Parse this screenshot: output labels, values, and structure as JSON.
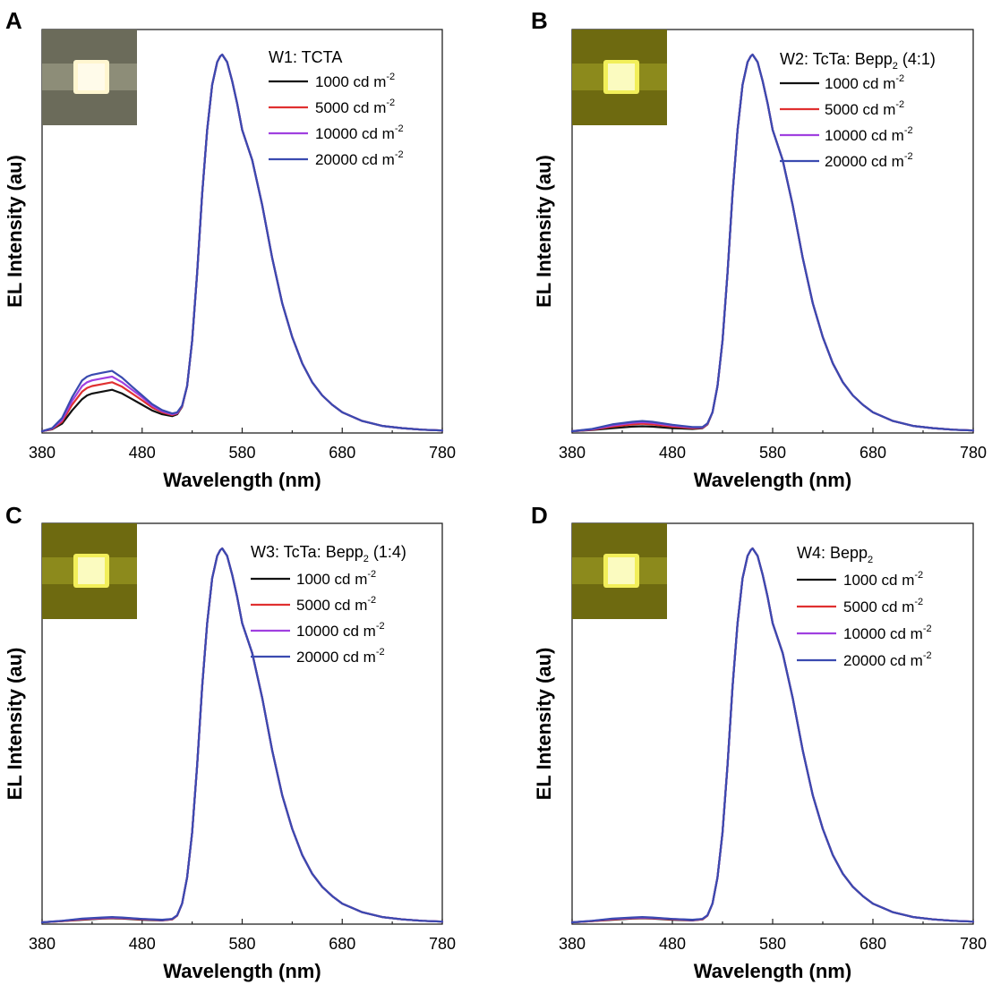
{
  "x_axis_label": "Wavelength (nm)",
  "y_axis_label": "EL Intensity (au)",
  "x_ticks": [
    "380",
    "480",
    "580",
    "680",
    "780"
  ],
  "unit_label": "cd m",
  "unit_exponent": "-2",
  "colors": {
    "1000": "#111111",
    "5000": "#e03030",
    "10000": "#a040e0",
    "20000": "#3a4ab0",
    "photo_dark": "#6f6f58",
    "photo_yellow": "#7a7a18"
  },
  "chart_data": [
    {
      "type": "line",
      "panel": "A",
      "legend_title": "W1: TCTA",
      "legend_title_parts": [
        "W1: TCTA",
        "",
        ""
      ],
      "xlim": [
        380,
        780
      ],
      "ylim": [
        0,
        1.0
      ],
      "x": [
        380,
        390,
        400,
        410,
        420,
        425,
        430,
        440,
        450,
        460,
        470,
        480,
        490,
        500,
        510,
        515,
        520,
        525,
        530,
        535,
        540,
        545,
        550,
        555,
        558,
        560,
        565,
        570,
        575,
        580,
        590,
        600,
        610,
        620,
        630,
        640,
        650,
        660,
        670,
        680,
        700,
        720,
        740,
        760,
        780
      ],
      "series": [
        {
          "name": "1000 cd m-2",
          "color": "#111111",
          "values": [
            0.0,
            0.005,
            0.02,
            0.055,
            0.085,
            0.095,
            0.1,
            0.105,
            0.11,
            0.1,
            0.085,
            0.07,
            0.055,
            0.045,
            0.04,
            0.045,
            0.065,
            0.12,
            0.24,
            0.42,
            0.63,
            0.8,
            0.92,
            0.98,
            0.995,
            1.0,
            0.98,
            0.93,
            0.87,
            0.8,
            0.72,
            0.6,
            0.46,
            0.34,
            0.25,
            0.18,
            0.13,
            0.095,
            0.07,
            0.05,
            0.027,
            0.014,
            0.008,
            0.004,
            0.002
          ]
        },
        {
          "name": "5000 cd m-2",
          "color": "#e03030",
          "values": [
            0.0,
            0.006,
            0.025,
            0.07,
            0.105,
            0.115,
            0.12,
            0.125,
            0.13,
            0.118,
            0.1,
            0.082,
            0.063,
            0.05,
            0.043,
            0.047,
            0.066,
            0.12,
            0.24,
            0.42,
            0.63,
            0.8,
            0.92,
            0.98,
            0.995,
            1.0,
            0.98,
            0.93,
            0.87,
            0.8,
            0.72,
            0.6,
            0.46,
            0.34,
            0.25,
            0.18,
            0.13,
            0.095,
            0.07,
            0.05,
            0.027,
            0.014,
            0.008,
            0.004,
            0.002
          ]
        },
        {
          "name": "10000 cd m-2",
          "color": "#a040e0",
          "values": [
            0.0,
            0.007,
            0.03,
            0.08,
            0.12,
            0.13,
            0.135,
            0.14,
            0.145,
            0.13,
            0.11,
            0.09,
            0.068,
            0.053,
            0.045,
            0.048,
            0.067,
            0.12,
            0.24,
            0.42,
            0.63,
            0.8,
            0.92,
            0.98,
            0.995,
            1.0,
            0.98,
            0.93,
            0.87,
            0.8,
            0.72,
            0.6,
            0.46,
            0.34,
            0.25,
            0.18,
            0.13,
            0.095,
            0.07,
            0.05,
            0.027,
            0.014,
            0.008,
            0.004,
            0.002
          ]
        },
        {
          "name": "20000 cd m-2",
          "color": "#3a4ab0",
          "values": [
            0.0,
            0.008,
            0.035,
            0.09,
            0.135,
            0.145,
            0.15,
            0.155,
            0.16,
            0.142,
            0.118,
            0.095,
            0.072,
            0.056,
            0.047,
            0.05,
            0.068,
            0.12,
            0.24,
            0.42,
            0.63,
            0.8,
            0.92,
            0.98,
            0.995,
            1.0,
            0.98,
            0.93,
            0.87,
            0.8,
            0.72,
            0.6,
            0.46,
            0.34,
            0.25,
            0.18,
            0.13,
            0.095,
            0.07,
            0.05,
            0.027,
            0.014,
            0.008,
            0.004,
            0.002
          ]
        }
      ],
      "xlabel": "Wavelength (nm)",
      "ylabel": "EL Intensity (au)",
      "photo": "white-emission",
      "legend_position": "top-right"
    },
    {
      "type": "line",
      "panel": "B",
      "legend_title": "W2: TcTa: Bepp2 (4:1)",
      "legend_title_parts": [
        "W2: TcTa: Bepp",
        "2",
        " (4:1)"
      ],
      "xlim": [
        380,
        780
      ],
      "ylim": [
        0,
        1.0
      ],
      "x": [
        380,
        400,
        420,
        440,
        450,
        460,
        480,
        500,
        510,
        515,
        520,
        525,
        530,
        535,
        540,
        545,
        550,
        555,
        558,
        560,
        565,
        570,
        575,
        580,
        590,
        600,
        610,
        620,
        630,
        640,
        650,
        660,
        670,
        680,
        700,
        720,
        740,
        760,
        780
      ],
      "series": [
        {
          "name": "1000 cd m-2",
          "color": "#111111",
          "values": [
            0.0,
            0.003,
            0.008,
            0.012,
            0.013,
            0.012,
            0.008,
            0.006,
            0.008,
            0.018,
            0.05,
            0.12,
            0.24,
            0.42,
            0.63,
            0.8,
            0.92,
            0.98,
            0.995,
            1.0,
            0.98,
            0.93,
            0.87,
            0.8,
            0.72,
            0.6,
            0.46,
            0.34,
            0.25,
            0.18,
            0.13,
            0.095,
            0.07,
            0.05,
            0.027,
            0.014,
            0.008,
            0.004,
            0.002
          ]
        },
        {
          "name": "5000 cd m-2",
          "color": "#e03030",
          "values": [
            0.0,
            0.004,
            0.012,
            0.018,
            0.02,
            0.018,
            0.012,
            0.008,
            0.009,
            0.019,
            0.05,
            0.12,
            0.24,
            0.42,
            0.63,
            0.8,
            0.92,
            0.98,
            0.995,
            1.0,
            0.98,
            0.93,
            0.87,
            0.8,
            0.72,
            0.6,
            0.46,
            0.34,
            0.25,
            0.18,
            0.13,
            0.095,
            0.07,
            0.05,
            0.027,
            0.014,
            0.008,
            0.004,
            0.002
          ]
        },
        {
          "name": "10000 cd m-2",
          "color": "#a040e0",
          "values": [
            0.0,
            0.005,
            0.015,
            0.022,
            0.024,
            0.022,
            0.015,
            0.01,
            0.01,
            0.02,
            0.05,
            0.12,
            0.24,
            0.42,
            0.63,
            0.8,
            0.92,
            0.98,
            0.995,
            1.0,
            0.98,
            0.93,
            0.87,
            0.8,
            0.72,
            0.6,
            0.46,
            0.34,
            0.25,
            0.18,
            0.13,
            0.095,
            0.07,
            0.05,
            0.027,
            0.014,
            0.008,
            0.004,
            0.002
          ]
        },
        {
          "name": "20000 cd m-2",
          "color": "#3a4ab0",
          "values": [
            0.0,
            0.006,
            0.018,
            0.025,
            0.027,
            0.025,
            0.017,
            0.011,
            0.011,
            0.021,
            0.05,
            0.12,
            0.24,
            0.42,
            0.63,
            0.8,
            0.92,
            0.98,
            0.995,
            1.0,
            0.98,
            0.93,
            0.87,
            0.8,
            0.72,
            0.6,
            0.46,
            0.34,
            0.25,
            0.18,
            0.13,
            0.095,
            0.07,
            0.05,
            0.027,
            0.014,
            0.008,
            0.004,
            0.002
          ]
        }
      ],
      "xlabel": "Wavelength (nm)",
      "ylabel": "EL Intensity (au)",
      "photo": "yellow-emission",
      "legend_position": "top-right"
    },
    {
      "type": "line",
      "panel": "C",
      "legend_title": "W3: TcTa: Bepp2 (1:4)",
      "legend_title_parts": [
        "W3: TcTa: Bepp",
        "2",
        " (1:4)"
      ],
      "xlim": [
        380,
        780
      ],
      "ylim": [
        0,
        1.0
      ],
      "x": [
        380,
        400,
        420,
        440,
        450,
        460,
        480,
        500,
        510,
        515,
        520,
        525,
        530,
        535,
        540,
        545,
        550,
        555,
        558,
        560,
        565,
        570,
        575,
        580,
        590,
        600,
        610,
        620,
        630,
        640,
        650,
        660,
        670,
        680,
        700,
        720,
        740,
        760,
        780
      ],
      "series": [
        {
          "name": "1000 cd m-2",
          "color": "#111111",
          "values": [
            0.0,
            0.003,
            0.007,
            0.01,
            0.011,
            0.01,
            0.007,
            0.005,
            0.008,
            0.018,
            0.05,
            0.12,
            0.24,
            0.42,
            0.63,
            0.8,
            0.92,
            0.98,
            0.995,
            1.0,
            0.98,
            0.93,
            0.87,
            0.8,
            0.72,
            0.6,
            0.46,
            0.34,
            0.25,
            0.18,
            0.13,
            0.095,
            0.07,
            0.05,
            0.027,
            0.014,
            0.008,
            0.004,
            0.002
          ]
        },
        {
          "name": "5000 cd m-2",
          "color": "#e03030",
          "values": [
            0.0,
            0.003,
            0.008,
            0.011,
            0.012,
            0.011,
            0.008,
            0.006,
            0.008,
            0.018,
            0.05,
            0.12,
            0.24,
            0.42,
            0.63,
            0.8,
            0.92,
            0.98,
            0.995,
            1.0,
            0.98,
            0.93,
            0.87,
            0.8,
            0.72,
            0.6,
            0.46,
            0.34,
            0.25,
            0.18,
            0.13,
            0.095,
            0.07,
            0.05,
            0.027,
            0.014,
            0.008,
            0.004,
            0.002
          ]
        },
        {
          "name": "10000 cd m-2",
          "color": "#a040e0",
          "values": [
            0.0,
            0.004,
            0.009,
            0.012,
            0.013,
            0.012,
            0.009,
            0.006,
            0.009,
            0.019,
            0.05,
            0.12,
            0.24,
            0.42,
            0.63,
            0.8,
            0.92,
            0.98,
            0.995,
            1.0,
            0.98,
            0.93,
            0.87,
            0.8,
            0.72,
            0.6,
            0.46,
            0.34,
            0.25,
            0.18,
            0.13,
            0.095,
            0.07,
            0.05,
            0.027,
            0.014,
            0.008,
            0.004,
            0.002
          ]
        },
        {
          "name": "20000 cd m-2",
          "color": "#3a4ab0",
          "values": [
            0.0,
            0.004,
            0.01,
            0.013,
            0.014,
            0.013,
            0.009,
            0.007,
            0.009,
            0.019,
            0.05,
            0.12,
            0.24,
            0.42,
            0.63,
            0.8,
            0.92,
            0.98,
            0.995,
            1.0,
            0.98,
            0.93,
            0.87,
            0.8,
            0.72,
            0.6,
            0.46,
            0.34,
            0.25,
            0.18,
            0.13,
            0.095,
            0.07,
            0.05,
            0.027,
            0.014,
            0.008,
            0.004,
            0.002
          ]
        }
      ],
      "xlabel": "Wavelength (nm)",
      "ylabel": "EL Intensity (au)",
      "photo": "yellow-emission",
      "legend_position": "top-right"
    },
    {
      "type": "line",
      "panel": "D",
      "legend_title": "W4: Bepp2",
      "legend_title_parts": [
        "W4: Bepp",
        "2",
        ""
      ],
      "xlim": [
        380,
        780
      ],
      "ylim": [
        0,
        1.0
      ],
      "x": [
        380,
        400,
        420,
        440,
        450,
        460,
        480,
        500,
        510,
        515,
        520,
        525,
        530,
        535,
        540,
        545,
        550,
        555,
        558,
        560,
        565,
        570,
        575,
        580,
        590,
        600,
        610,
        620,
        630,
        640,
        650,
        660,
        670,
        680,
        700,
        720,
        740,
        760,
        780
      ],
      "series": [
        {
          "name": "1000 cd m-2",
          "color": "#111111",
          "values": [
            0.0,
            0.003,
            0.007,
            0.01,
            0.011,
            0.01,
            0.007,
            0.005,
            0.008,
            0.018,
            0.05,
            0.12,
            0.24,
            0.42,
            0.63,
            0.8,
            0.92,
            0.98,
            0.995,
            1.0,
            0.98,
            0.93,
            0.87,
            0.8,
            0.72,
            0.6,
            0.46,
            0.34,
            0.25,
            0.18,
            0.13,
            0.095,
            0.07,
            0.05,
            0.027,
            0.014,
            0.008,
            0.004,
            0.002
          ]
        },
        {
          "name": "5000 cd m-2",
          "color": "#e03030",
          "values": [
            0.0,
            0.003,
            0.008,
            0.011,
            0.012,
            0.011,
            0.008,
            0.006,
            0.008,
            0.018,
            0.05,
            0.12,
            0.24,
            0.42,
            0.63,
            0.8,
            0.92,
            0.98,
            0.995,
            1.0,
            0.98,
            0.93,
            0.87,
            0.8,
            0.72,
            0.6,
            0.46,
            0.34,
            0.25,
            0.18,
            0.13,
            0.095,
            0.07,
            0.05,
            0.027,
            0.014,
            0.008,
            0.004,
            0.002
          ]
        },
        {
          "name": "10000 cd m-2",
          "color": "#a040e0",
          "values": [
            0.0,
            0.004,
            0.009,
            0.012,
            0.013,
            0.012,
            0.009,
            0.006,
            0.009,
            0.019,
            0.05,
            0.12,
            0.24,
            0.42,
            0.63,
            0.8,
            0.92,
            0.98,
            0.995,
            1.0,
            0.98,
            0.93,
            0.87,
            0.8,
            0.72,
            0.6,
            0.46,
            0.34,
            0.25,
            0.18,
            0.13,
            0.095,
            0.07,
            0.05,
            0.027,
            0.014,
            0.008,
            0.004,
            0.002
          ]
        },
        {
          "name": "20000 cd m-2",
          "color": "#3a4ab0",
          "values": [
            0.0,
            0.004,
            0.01,
            0.013,
            0.014,
            0.013,
            0.009,
            0.007,
            0.009,
            0.019,
            0.05,
            0.12,
            0.24,
            0.42,
            0.63,
            0.8,
            0.92,
            0.98,
            0.995,
            1.0,
            0.98,
            0.93,
            0.87,
            0.8,
            0.72,
            0.6,
            0.46,
            0.34,
            0.25,
            0.18,
            0.13,
            0.095,
            0.07,
            0.05,
            0.027,
            0.014,
            0.008,
            0.004,
            0.002
          ]
        }
      ],
      "xlabel": "Wavelength (nm)",
      "ylabel": "EL Intensity (au)",
      "photo": "yellow-emission",
      "legend_position": "top-right"
    }
  ],
  "legend_values": [
    "1000",
    "5000",
    "10000",
    "20000"
  ]
}
